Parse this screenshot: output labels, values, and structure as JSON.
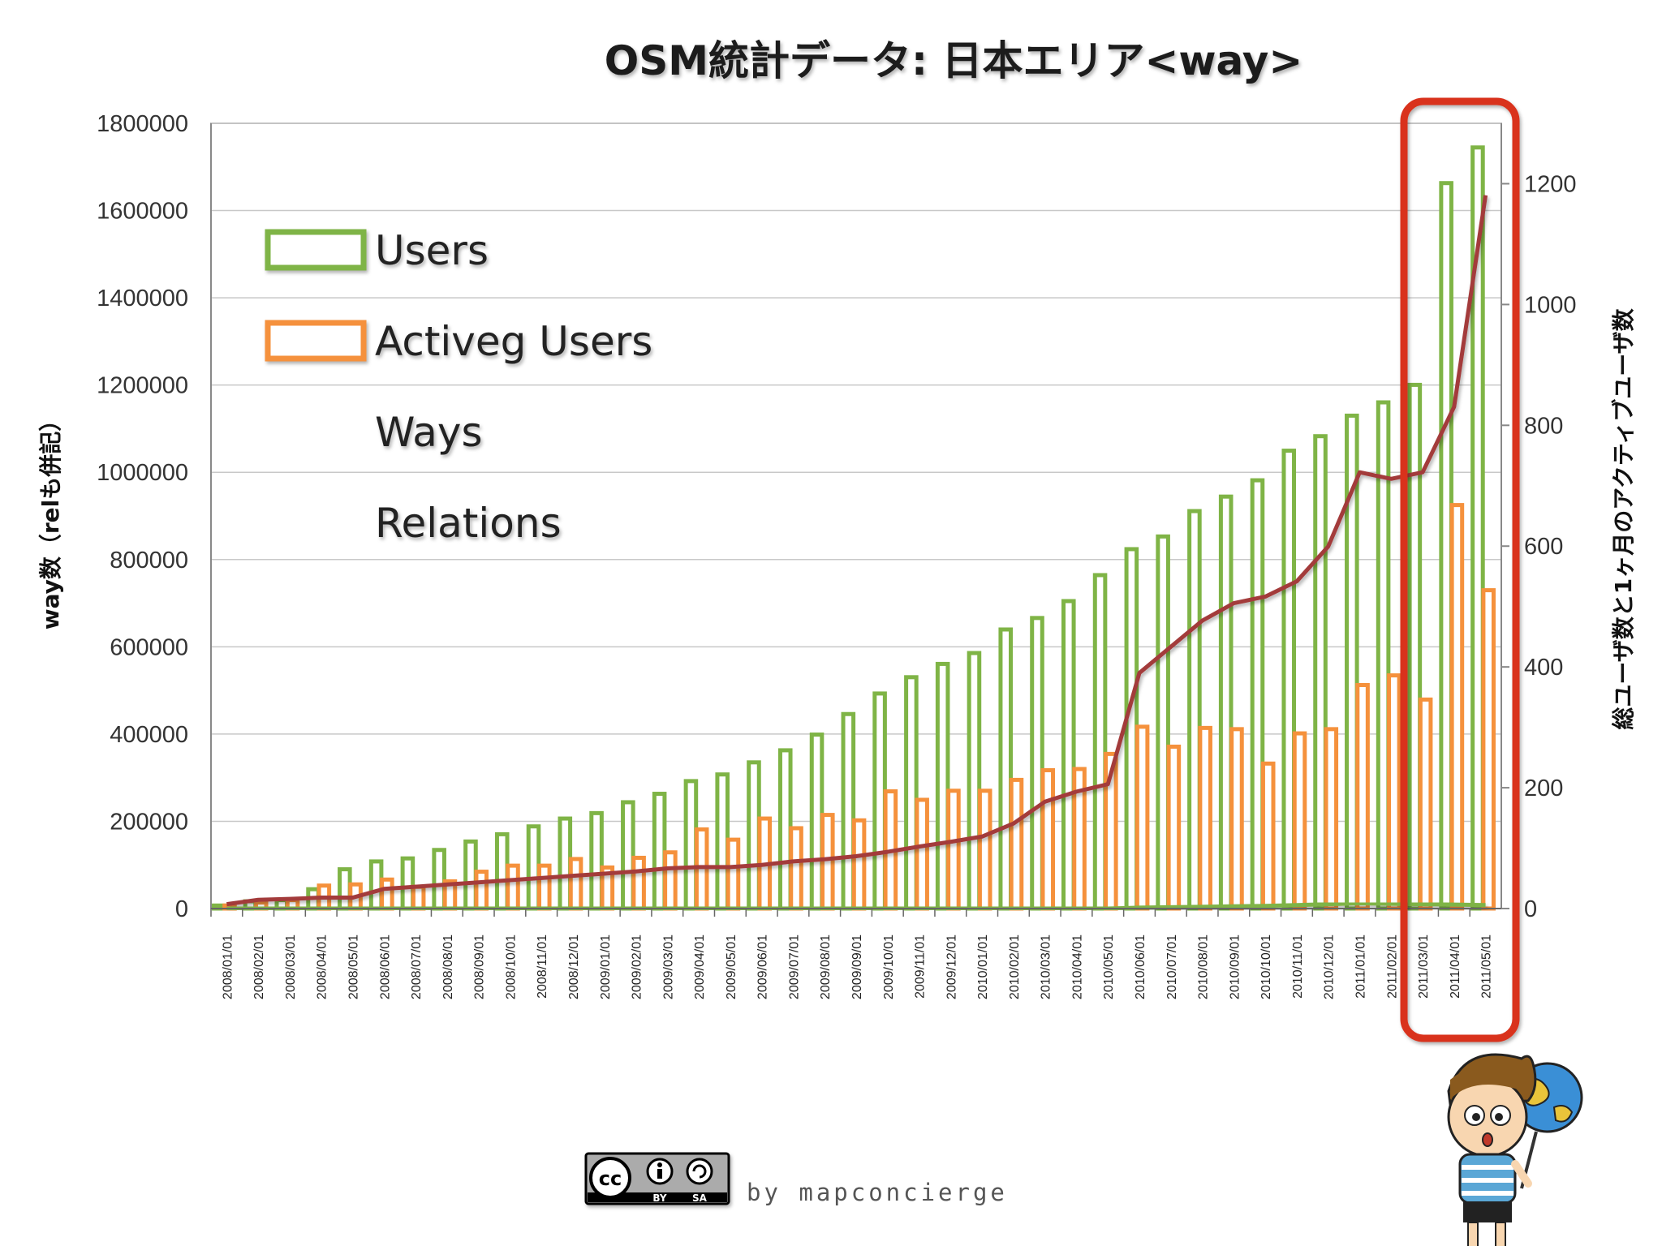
{
  "chart_data": {
    "type": "bar",
    "title": "OSM統計データ: 日本エリア<way>",
    "ylabel_left": "way数（relも併記）",
    "ylabel_right": "総ユーザ数と1ヶ月のアクティブユーザ数",
    "ylim_left": [
      0,
      1800000
    ],
    "ylim_right": [
      0,
      1300
    ],
    "yticks_left": [
      "1800000",
      "1600000",
      "1400000",
      "1200000",
      "1000000",
      "800000",
      "600000",
      "400000",
      "200000",
      "0"
    ],
    "yticks_right": [
      "1200",
      "1000",
      "800",
      "600",
      "400",
      "200",
      "0"
    ],
    "categories": [
      "2008/01/01",
      "2008/02/01",
      "2008/03/01",
      "2008/04/01",
      "2008/05/01",
      "2008/06/01",
      "2008/07/01",
      "2008/08/01",
      "2008/09/01",
      "2008/10/01",
      "2008/11/01",
      "2008/12/01",
      "2009/01/01",
      "2009/02/01",
      "2009/03/01",
      "2009/04/01",
      "2009/05/01",
      "2009/06/01",
      "2009/07/01",
      "2009/08/01",
      "2009/09/01",
      "2009/10/01",
      "2009/11/01",
      "2009/12/01",
      "2010/01/01",
      "2010/02/01",
      "2010/03/01",
      "2010/04/01",
      "2010/05/01",
      "2010/06/01",
      "2010/07/01",
      "2010/08/01",
      "2010/09/01",
      "2010/10/01",
      "2010/11/01",
      "2010/12/01",
      "2011/01/01",
      "2011/02/01",
      "2011/03/01",
      "2011/04/01",
      "2011/05/01"
    ],
    "legend_placement": "top-left",
    "grid": true,
    "series": [
      {
        "name": "Users",
        "kind": "bar",
        "axis": "right",
        "color": "#7fb446",
        "values": [
          5,
          12,
          14,
          32,
          65,
          78,
          83,
          97,
          111,
          123,
          136,
          149,
          158,
          176,
          190,
          211,
          222,
          242,
          262,
          288,
          322,
          356,
          383,
          405,
          423,
          462,
          481,
          509,
          552,
          595,
          616,
          658,
          682,
          709,
          758,
          782,
          816,
          838,
          867,
          1201,
          1260
        ]
      },
      {
        "name": "Activeg Users",
        "kind": "bar",
        "axis": "right",
        "color": "#f5913c",
        "values": [
          5,
          10,
          14,
          38,
          40,
          48,
          36,
          45,
          61,
          71,
          71,
          82,
          68,
          84,
          93,
          131,
          114,
          149,
          133,
          155,
          146,
          194,
          180,
          195,
          195,
          213,
          229,
          231,
          256,
          301,
          268,
          299,
          297,
          240,
          290,
          297,
          370,
          386,
          346,
          668,
          527
        ]
      },
      {
        "name": "Ways",
        "kind": "line",
        "axis": "left",
        "color": "#a33a3a",
        "values": [
          10000,
          20000,
          22000,
          25000,
          25000,
          45000,
          50000,
          55000,
          60000,
          65000,
          70000,
          75000,
          80000,
          85000,
          92000,
          95000,
          95000,
          100000,
          108000,
          113000,
          120000,
          130000,
          142000,
          153000,
          165000,
          195000,
          245000,
          268000,
          285000,
          540000,
          600000,
          660000,
          700000,
          715000,
          750000,
          830000,
          1000000,
          985000,
          1000000,
          1150000,
          1635000
        ]
      },
      {
        "name": "Relations",
        "kind": "line",
        "axis": "left",
        "color": "#7fb446",
        "values": [
          0,
          0,
          0,
          0,
          0,
          0,
          0,
          0,
          0,
          0,
          0,
          0,
          0,
          0,
          0,
          0,
          0,
          0,
          0,
          0,
          0,
          0,
          0,
          0,
          0,
          0,
          0,
          0,
          0,
          2000,
          3000,
          4000,
          5000,
          6000,
          8000,
          10000,
          12000,
          11000,
          10000,
          9000,
          8000
        ]
      }
    ]
  },
  "credit": "by mapconcierge",
  "license": {
    "name": "cc-by-sa",
    "by_label": "BY",
    "sa_label": "SA"
  },
  "colors": {
    "highlight": "#d9301c"
  }
}
